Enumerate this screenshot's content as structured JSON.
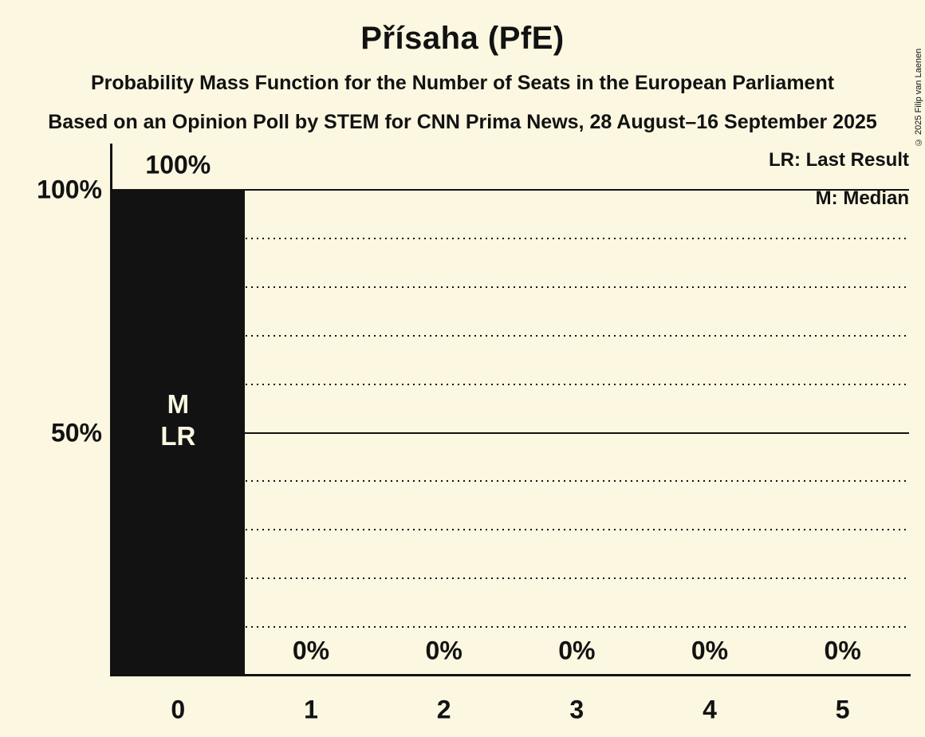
{
  "page": {
    "title": "Přísaha (PfE)",
    "subtitle": "Probability Mass Function for the Number of Seats in the European Parliament",
    "source_line": "Based on an Opinion Poll by STEM for CNN Prima News, 28 August–16 September 2025",
    "copyright": "© 2025 Filip van Laenen"
  },
  "legend": {
    "last_result": "LR: Last Result",
    "median": "M: Median"
  },
  "colors": {
    "background": "#FBF7E1",
    "ink": "#121212",
    "bar": "#121212",
    "bar_annotation_text": "#FBF7E1"
  },
  "chart_data": {
    "type": "bar",
    "title": "Přísaha (PfE)",
    "categories": [
      "0",
      "1",
      "2",
      "3",
      "4",
      "5"
    ],
    "values": [
      100,
      0,
      0,
      0,
      0,
      0
    ],
    "value_labels": [
      "100%",
      "0%",
      "0%",
      "0%",
      "0%",
      "0%"
    ],
    "bar_annotations": [
      [
        "M",
        "LR"
      ],
      [],
      [],
      [],
      [],
      []
    ],
    "xlabel": "",
    "ylabel": "",
    "ylim": [
      0,
      100
    ],
    "yticks": [
      {
        "value": 100,
        "label": "100%"
      },
      {
        "value": 50,
        "label": "50%"
      }
    ],
    "gridlines_solid": [
      100,
      50
    ],
    "gridlines_dotted": [
      90,
      80,
      70,
      60,
      40,
      30,
      20,
      10
    ],
    "grid": "horizontal-only",
    "legend_position": "top-right",
    "median_category": "0",
    "last_result_category": "0"
  }
}
